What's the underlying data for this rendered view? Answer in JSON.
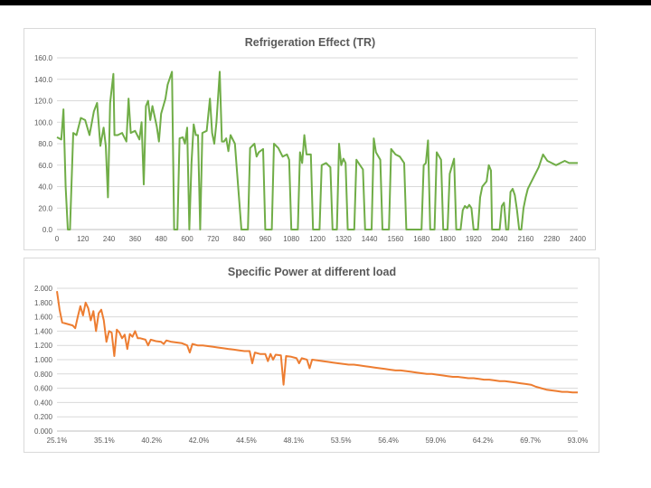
{
  "chart_data": [
    {
      "type": "line",
      "title": "Refrigeration Effect (TR)",
      "xlabel": "",
      "ylabel": "",
      "xlim": [
        0,
        2400
      ],
      "ylim": [
        0,
        160
      ],
      "x_ticks": [
        "0",
        "120",
        "240",
        "360",
        "480",
        "600",
        "720",
        "840",
        "960",
        "1080",
        "1200",
        "1320",
        "1440",
        "1560",
        "1680",
        "1800",
        "1920",
        "2040",
        "2160",
        "2280",
        "2400"
      ],
      "y_ticks": [
        "0.0",
        "20.0",
        "40.0",
        "60.0",
        "80.0",
        "100.0",
        "120.0",
        "140.0",
        "160.0"
      ],
      "grid": "horizontal",
      "legend": "none",
      "color": "#70ad47",
      "points": [
        [
          0,
          86
        ],
        [
          20,
          84
        ],
        [
          30,
          112
        ],
        [
          40,
          40
        ],
        [
          50,
          0
        ],
        [
          60,
          0
        ],
        [
          75,
          90
        ],
        [
          90,
          88
        ],
        [
          110,
          104
        ],
        [
          130,
          102
        ],
        [
          150,
          88
        ],
        [
          170,
          110
        ],
        [
          185,
          118
        ],
        [
          200,
          78
        ],
        [
          215,
          95
        ],
        [
          225,
          78
        ],
        [
          235,
          30
        ],
        [
          245,
          118
        ],
        [
          260,
          145
        ],
        [
          265,
          88
        ],
        [
          280,
          88
        ],
        [
          300,
          90
        ],
        [
          320,
          82
        ],
        [
          330,
          122
        ],
        [
          340,
          90
        ],
        [
          360,
          92
        ],
        [
          380,
          84
        ],
        [
          390,
          100
        ],
        [
          400,
          42
        ],
        [
          410,
          115
        ],
        [
          420,
          120
        ],
        [
          430,
          102
        ],
        [
          440,
          115
        ],
        [
          460,
          96
        ],
        [
          470,
          82
        ],
        [
          480,
          108
        ],
        [
          500,
          122
        ],
        [
          510,
          135
        ],
        [
          530,
          147
        ],
        [
          540,
          0
        ],
        [
          555,
          0
        ],
        [
          565,
          85
        ],
        [
          580,
          86
        ],
        [
          590,
          80
        ],
        [
          600,
          95
        ],
        [
          610,
          0
        ],
        [
          620,
          62
        ],
        [
          630,
          98
        ],
        [
          640,
          88
        ],
        [
          650,
          88
        ],
        [
          660,
          0
        ],
        [
          670,
          90
        ],
        [
          690,
          92
        ],
        [
          705,
          122
        ],
        [
          715,
          90
        ],
        [
          725,
          80
        ],
        [
          735,
          100
        ],
        [
          750,
          147
        ],
        [
          760,
          82
        ],
        [
          770,
          82
        ],
        [
          780,
          85
        ],
        [
          790,
          73
        ],
        [
          800,
          88
        ],
        [
          820,
          80
        ],
        [
          850,
          0
        ],
        [
          880,
          0
        ],
        [
          890,
          76
        ],
        [
          910,
          80
        ],
        [
          920,
          68
        ],
        [
          930,
          72
        ],
        [
          950,
          75
        ],
        [
          960,
          0
        ],
        [
          990,
          0
        ],
        [
          1000,
          80
        ],
        [
          1020,
          76
        ],
        [
          1040,
          68
        ],
        [
          1060,
          70
        ],
        [
          1070,
          65
        ],
        [
          1080,
          0
        ],
        [
          1110,
          0
        ],
        [
          1120,
          72
        ],
        [
          1130,
          62
        ],
        [
          1140,
          88
        ],
        [
          1150,
          70
        ],
        [
          1170,
          70
        ],
        [
          1180,
          0
        ],
        [
          1210,
          0
        ],
        [
          1220,
          60
        ],
        [
          1240,
          62
        ],
        [
          1260,
          58
        ],
        [
          1270,
          0
        ],
        [
          1290,
          0
        ],
        [
          1300,
          80
        ],
        [
          1310,
          60
        ],
        [
          1320,
          66
        ],
        [
          1330,
          62
        ],
        [
          1340,
          0
        ],
        [
          1370,
          0
        ],
        [
          1380,
          65
        ],
        [
          1390,
          62
        ],
        [
          1410,
          56
        ],
        [
          1420,
          0
        ],
        [
          1450,
          0
        ],
        [
          1460,
          85
        ],
        [
          1470,
          72
        ],
        [
          1490,
          65
        ],
        [
          1500,
          0
        ],
        [
          1530,
          0
        ],
        [
          1540,
          75
        ],
        [
          1560,
          70
        ],
        [
          1580,
          68
        ],
        [
          1600,
          62
        ],
        [
          1610,
          0
        ],
        [
          1640,
          0
        ],
        [
          1660,
          0
        ],
        [
          1680,
          0
        ],
        [
          1690,
          60
        ],
        [
          1700,
          62
        ],
        [
          1710,
          83
        ],
        [
          1720,
          0
        ],
        [
          1740,
          0
        ],
        [
          1750,
          72
        ],
        [
          1770,
          65
        ],
        [
          1780,
          0
        ],
        [
          1800,
          0
        ],
        [
          1810,
          52
        ],
        [
          1830,
          66
        ],
        [
          1840,
          0
        ],
        [
          1860,
          0
        ],
        [
          1870,
          18
        ],
        [
          1880,
          22
        ],
        [
          1890,
          20
        ],
        [
          1900,
          23
        ],
        [
          1910,
          20
        ],
        [
          1920,
          0
        ],
        [
          1940,
          0
        ],
        [
          1950,
          30
        ],
        [
          1960,
          40
        ],
        [
          1980,
          45
        ],
        [
          1990,
          60
        ],
        [
          2000,
          55
        ],
        [
          2005,
          0
        ],
        [
          2010,
          0
        ],
        [
          2020,
          0
        ],
        [
          2040,
          0
        ],
        [
          2050,
          22
        ],
        [
          2060,
          25
        ],
        [
          2070,
          0
        ],
        [
          2080,
          0
        ],
        [
          2090,
          35
        ],
        [
          2100,
          38
        ],
        [
          2110,
          32
        ],
        [
          2120,
          18
        ],
        [
          2130,
          0
        ],
        [
          2140,
          0
        ],
        [
          2150,
          20
        ],
        [
          2160,
          30
        ],
        [
          2170,
          38
        ],
        [
          2180,
          42
        ],
        [
          2200,
          50
        ],
        [
          2220,
          58
        ],
        [
          2240,
          70
        ],
        [
          2260,
          64
        ],
        [
          2280,
          62
        ],
        [
          2300,
          60
        ],
        [
          2320,
          62
        ],
        [
          2340,
          64
        ],
        [
          2360,
          62
        ],
        [
          2380,
          62
        ],
        [
          2400,
          62
        ]
      ]
    },
    {
      "type": "line",
      "title": "Specific Power at different load",
      "xlabel": "",
      "ylabel": "",
      "ylim": [
        0,
        2.0
      ],
      "x_ticks": [
        "25.1%",
        "35.1%",
        "40.2%",
        "42.0%",
        "44.5%",
        "48.1%",
        "53.5%",
        "56.4%",
        "59.0%",
        "64.2%",
        "69.7%",
        "93.0%"
      ],
      "y_ticks": [
        "0.000",
        "0.200",
        "0.400",
        "0.600",
        "0.800",
        "1.000",
        "1.200",
        "1.400",
        "1.600",
        "1.800",
        "2.000"
      ],
      "grid": "horizontal",
      "legend": "none",
      "color": "#ed7d31",
      "index_range": [
        0,
        100
      ],
      "points": [
        [
          0,
          1.96
        ],
        [
          0.5,
          1.7
        ],
        [
          1,
          1.52
        ],
        [
          2,
          1.5
        ],
        [
          3,
          1.48
        ],
        [
          3.5,
          1.44
        ],
        [
          4,
          1.6
        ],
        [
          4.5,
          1.75
        ],
        [
          5,
          1.62
        ],
        [
          5.5,
          1.8
        ],
        [
          6,
          1.72
        ],
        [
          6.5,
          1.55
        ],
        [
          7,
          1.68
        ],
        [
          7.5,
          1.4
        ],
        [
          8,
          1.65
        ],
        [
          8.5,
          1.7
        ],
        [
          9,
          1.55
        ],
        [
          9.5,
          1.25
        ],
        [
          10,
          1.4
        ],
        [
          10.5,
          1.38
        ],
        [
          11,
          1.05
        ],
        [
          11.5,
          1.42
        ],
        [
          12,
          1.38
        ],
        [
          12.5,
          1.3
        ],
        [
          13,
          1.35
        ],
        [
          13.5,
          1.15
        ],
        [
          14,
          1.36
        ],
        [
          14.5,
          1.32
        ],
        [
          15,
          1.4
        ],
        [
          15.5,
          1.3
        ],
        [
          16,
          1.3
        ],
        [
          17,
          1.28
        ],
        [
          17.5,
          1.2
        ],
        [
          18,
          1.28
        ],
        [
          19,
          1.26
        ],
        [
          20,
          1.25
        ],
        [
          20.5,
          1.22
        ],
        [
          21,
          1.27
        ],
        [
          22,
          1.25
        ],
        [
          23,
          1.24
        ],
        [
          24,
          1.23
        ],
        [
          25,
          1.2
        ],
        [
          25.5,
          1.1
        ],
        [
          26,
          1.22
        ],
        [
          27,
          1.2
        ],
        [
          28,
          1.2
        ],
        [
          29,
          1.19
        ],
        [
          30,
          1.18
        ],
        [
          31,
          1.17
        ],
        [
          32,
          1.16
        ],
        [
          33,
          1.15
        ],
        [
          34,
          1.14
        ],
        [
          35,
          1.13
        ],
        [
          36,
          1.12
        ],
        [
          37,
          1.12
        ],
        [
          37.5,
          0.95
        ],
        [
          38,
          1.1
        ],
        [
          39,
          1.08
        ],
        [
          40,
          1.08
        ],
        [
          40.5,
          0.98
        ],
        [
          41,
          1.08
        ],
        [
          41.5,
          1.0
        ],
        [
          42,
          1.07
        ],
        [
          43,
          1.06
        ],
        [
          43.5,
          0.65
        ],
        [
          44,
          1.05
        ],
        [
          45,
          1.04
        ],
        [
          46,
          1.02
        ],
        [
          46.5,
          0.95
        ],
        [
          47,
          1.02
        ],
        [
          48,
          1.0
        ],
        [
          48.5,
          0.88
        ],
        [
          49,
          1.0
        ],
        [
          50,
          0.99
        ],
        [
          51,
          0.98
        ],
        [
          52,
          0.97
        ],
        [
          53,
          0.96
        ],
        [
          54,
          0.95
        ],
        [
          55,
          0.94
        ],
        [
          56,
          0.93
        ],
        [
          57,
          0.93
        ],
        [
          58,
          0.92
        ],
        [
          59,
          0.91
        ],
        [
          60,
          0.9
        ],
        [
          61,
          0.89
        ],
        [
          62,
          0.88
        ],
        [
          63,
          0.87
        ],
        [
          64,
          0.86
        ],
        [
          65,
          0.85
        ],
        [
          66,
          0.85
        ],
        [
          67,
          0.84
        ],
        [
          68,
          0.83
        ],
        [
          69,
          0.82
        ],
        [
          70,
          0.81
        ],
        [
          71,
          0.8
        ],
        [
          72,
          0.8
        ],
        [
          73,
          0.79
        ],
        [
          74,
          0.78
        ],
        [
          75,
          0.77
        ],
        [
          76,
          0.76
        ],
        [
          77,
          0.76
        ],
        [
          78,
          0.75
        ],
        [
          79,
          0.74
        ],
        [
          80,
          0.74
        ],
        [
          81,
          0.73
        ],
        [
          82,
          0.72
        ],
        [
          83,
          0.72
        ],
        [
          84,
          0.71
        ],
        [
          85,
          0.7
        ],
        [
          86,
          0.7
        ],
        [
          87,
          0.69
        ],
        [
          88,
          0.68
        ],
        [
          89,
          0.67
        ],
        [
          90,
          0.66
        ],
        [
          91,
          0.65
        ],
        [
          92,
          0.62
        ],
        [
          93,
          0.6
        ],
        [
          94,
          0.58
        ],
        [
          95,
          0.57
        ],
        [
          96,
          0.56
        ],
        [
          97,
          0.55
        ],
        [
          98,
          0.55
        ],
        [
          99,
          0.54
        ],
        [
          100,
          0.54
        ]
      ]
    }
  ]
}
